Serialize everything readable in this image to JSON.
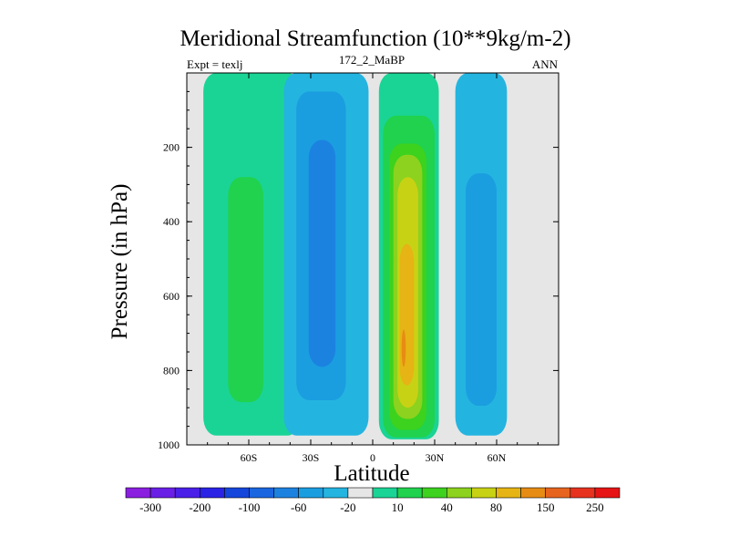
{
  "chart_data": {
    "type": "heatmap",
    "title": "Meridional Streamfunction (10**9kg/m-2)",
    "left_label": "Expt = texlj",
    "center_label": "172_2_MaBP",
    "right_label": "ANN",
    "xlabel": "Latitude",
    "ylabel": "Pressure (in hPa)",
    "xlim": [
      -90,
      90
    ],
    "ylim": [
      0,
      1000
    ],
    "y_inverted": true,
    "x_ticks": [
      {
        "value": -60,
        "label": "60S"
      },
      {
        "value": -30,
        "label": "30S"
      },
      {
        "value": 0,
        "label": "0"
      },
      {
        "value": 30,
        "label": "30N"
      },
      {
        "value": 60,
        "label": "60N"
      }
    ],
    "y_ticks": [
      {
        "value": 200,
        "label": "200"
      },
      {
        "value": 400,
        "label": "400"
      },
      {
        "value": 600,
        "label": "600"
      },
      {
        "value": 800,
        "label": "800"
      },
      {
        "value": 1000,
        "label": "1000"
      }
    ],
    "background_color": "#e6e6e6",
    "colorbar": {
      "levels": [
        -300,
        -250,
        -200,
        -150,
        -100,
        -80,
        -60,
        -40,
        -20,
        -10,
        10,
        20,
        40,
        60,
        80,
        100,
        150,
        200,
        250,
        300
      ],
      "labels": [
        {
          "after_level": -300,
          "text": "-300"
        },
        {
          "after_level": -200,
          "text": "-200"
        },
        {
          "after_level": -100,
          "text": "-100"
        },
        {
          "after_level": -60,
          "text": "-60"
        },
        {
          "after_level": -20,
          "text": "-20"
        },
        {
          "after_level": 10,
          "text": "10"
        },
        {
          "after_level": 40,
          "text": "40"
        },
        {
          "after_level": 80,
          "text": "80"
        },
        {
          "after_level": 150,
          "text": "150"
        },
        {
          "after_level": 250,
          "text": "250"
        }
      ],
      "colors": [
        "#8a1fe0",
        "#6a1fe6",
        "#4a1fe8",
        "#2a23e6",
        "#1446dc",
        "#1a66e0",
        "#1c82e0",
        "#1a9ee0",
        "#24b4e0",
        "#e6e6e6",
        "#1ad496",
        "#20d24e",
        "#3cd21e",
        "#8cd21e",
        "#c8d214",
        "#e6b414",
        "#e68c14",
        "#e6641e",
        "#e6321e",
        "#e61414"
      ]
    },
    "regions": [
      {
        "name": "sh-outer-cell",
        "level": "10 to 20",
        "color": "#1ad496",
        "lat_range": [
          -82,
          -35
        ],
        "p_range": [
          0,
          975
        ]
      },
      {
        "name": "sh-outer-cell-core",
        "level": "20 to 40",
        "color": "#20d24e",
        "lat_range": [
          -70,
          -53
        ],
        "p_range": [
          280,
          885
        ]
      },
      {
        "name": "sh-hadley-cell",
        "level": "-10 to -20",
        "color": "#24b4e0",
        "lat_range": [
          -43,
          -2
        ],
        "p_range": [
          0,
          975
        ]
      },
      {
        "name": "sh-hadley-cell-core",
        "level": "-20 to -40",
        "color": "#1a9ee0",
        "lat_range": [
          -37,
          -13
        ],
        "p_range": [
          50,
          880
        ]
      },
      {
        "name": "sh-hadley-cell-max",
        "level": "-40 to -60",
        "color": "#1c82e0",
        "lat_range": [
          -31,
          -18
        ],
        "p_range": [
          180,
          790
        ]
      },
      {
        "name": "nh-hadley-cell",
        "level": "10 to 20",
        "color": "#1ad496",
        "lat_range": [
          3,
          32
        ],
        "p_range": [
          0,
          985
        ]
      },
      {
        "name": "nh-hadley-cell-1",
        "level": "20 to 40",
        "color": "#20d24e",
        "lat_range": [
          5,
          30
        ],
        "p_range": [
          115,
          980
        ]
      },
      {
        "name": "nh-hadley-cell-2",
        "level": "40 to 60",
        "color": "#3cd21e",
        "lat_range": [
          8,
          26
        ],
        "p_range": [
          190,
          960
        ]
      },
      {
        "name": "nh-hadley-cell-3",
        "level": "60 to 80",
        "color": "#8cd21e",
        "lat_range": [
          10,
          24
        ],
        "p_range": [
          220,
          930
        ]
      },
      {
        "name": "nh-hadley-cell-4",
        "level": "80 to 100",
        "color": "#c8d214",
        "lat_range": [
          12,
          22
        ],
        "p_range": [
          280,
          900
        ]
      },
      {
        "name": "nh-hadley-cell-5",
        "level": "100 to 150",
        "color": "#e6b414",
        "lat_range": [
          13,
          20
        ],
        "p_range": [
          460,
          840
        ]
      },
      {
        "name": "nh-hadley-cell-max",
        "level": "150 to 200",
        "color": "#e68c14",
        "lat_range": [
          14,
          16
        ],
        "p_range": [
          690,
          790
        ]
      },
      {
        "name": "nh-ferrel-cell",
        "level": "-10 to -20",
        "color": "#24b4e0",
        "lat_range": [
          40,
          65
        ],
        "p_range": [
          0,
          975
        ]
      },
      {
        "name": "nh-ferrel-cell-core",
        "level": "-20 to -40",
        "color": "#1a9ee0",
        "lat_range": [
          45,
          60
        ],
        "p_range": [
          270,
          895
        ]
      }
    ]
  }
}
